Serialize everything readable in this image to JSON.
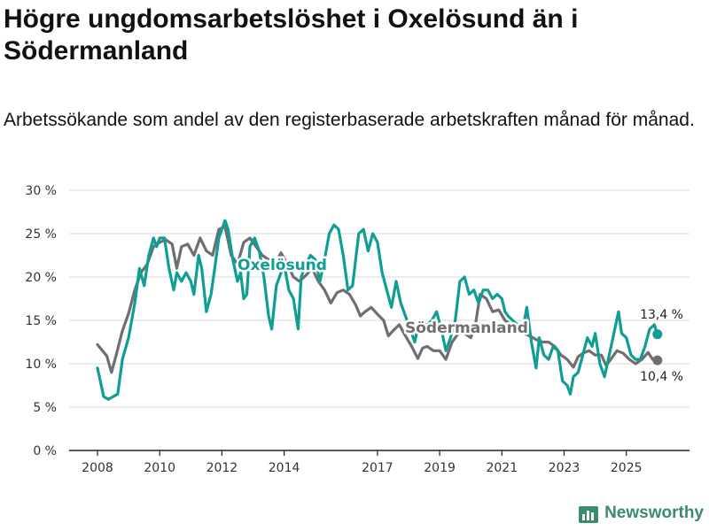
{
  "title": "Högre ungdomsarbetslöshet i Oxelösund än i Södermanland",
  "subtitle": "Arbetssökande som andel av den registerbaserade arbetskraften månad för månad.",
  "brand": "Newsworthy",
  "colors": {
    "oxelosund": "#0f9e94",
    "sodermanland": "#716e72",
    "grid": "#d8d8d8",
    "axis": "#222222"
  },
  "chart_data": {
    "type": "line",
    "title": "Högre ungdomsarbetslöshet i Oxelösund än i Södermanland",
    "xlabel": "",
    "ylabel": "",
    "xlim": [
      2008.0,
      2026.6
    ],
    "ylim": [
      0,
      30
    ],
    "y_ticks": [
      0,
      5,
      10,
      15,
      20,
      25,
      30
    ],
    "y_tick_labels": [
      "0 %",
      "5 %",
      "10 %",
      "15 %",
      "20 %",
      "25 %",
      "30 %"
    ],
    "x_ticks": [
      2008,
      2010,
      2012,
      2014,
      2017,
      2019,
      2021,
      2023,
      2025
    ],
    "x_tick_labels": [
      "2008",
      "2010",
      "2012",
      "2014",
      "2017",
      "2019",
      "2021",
      "2023",
      "2025"
    ],
    "grid": true,
    "series": [
      {
        "name": "Södermanland",
        "end_label": "10,4 %",
        "points": [
          [
            2008.0,
            12.2
          ],
          [
            2008.3,
            10.9
          ],
          [
            2008.45,
            9.0
          ],
          [
            2008.6,
            11.0
          ],
          [
            2008.8,
            13.8
          ],
          [
            2009.0,
            15.8
          ],
          [
            2009.2,
            18.5
          ],
          [
            2009.4,
            20.5
          ],
          [
            2009.6,
            21.5
          ],
          [
            2009.8,
            23.5
          ],
          [
            2010.0,
            24.0
          ],
          [
            2010.2,
            24.3
          ],
          [
            2010.4,
            23.8
          ],
          [
            2010.55,
            21.0
          ],
          [
            2010.7,
            23.5
          ],
          [
            2010.9,
            23.8
          ],
          [
            2011.1,
            22.5
          ],
          [
            2011.3,
            24.5
          ],
          [
            2011.5,
            23.0
          ],
          [
            2011.7,
            22.5
          ],
          [
            2011.9,
            25.5
          ],
          [
            2012.1,
            25.8
          ],
          [
            2012.3,
            22.5
          ],
          [
            2012.5,
            21.5
          ],
          [
            2012.7,
            24.0
          ],
          [
            2012.9,
            24.5
          ],
          [
            2013.1,
            23.5
          ],
          [
            2013.3,
            22.5
          ],
          [
            2013.5,
            22.0
          ],
          [
            2013.7,
            21.5
          ],
          [
            2013.9,
            22.8
          ],
          [
            2014.1,
            21.5
          ],
          [
            2014.3,
            20.0
          ],
          [
            2014.5,
            19.5
          ],
          [
            2014.7,
            20.2
          ],
          [
            2014.9,
            21.0
          ],
          [
            2015.1,
            19.5
          ],
          [
            2015.3,
            18.5
          ],
          [
            2015.5,
            17.0
          ],
          [
            2015.7,
            18.2
          ],
          [
            2015.9,
            18.5
          ],
          [
            2016.1,
            18.0
          ],
          [
            2016.3,
            16.8
          ],
          [
            2016.45,
            15.5
          ],
          [
            2016.6,
            16.0
          ],
          [
            2016.8,
            16.5
          ],
          [
            2017.0,
            15.7
          ],
          [
            2017.2,
            15.0
          ],
          [
            2017.35,
            13.2
          ],
          [
            2017.5,
            13.8
          ],
          [
            2017.7,
            14.5
          ],
          [
            2017.9,
            13.2
          ],
          [
            2018.1,
            12.0
          ],
          [
            2018.3,
            10.6
          ],
          [
            2018.45,
            11.8
          ],
          [
            2018.6,
            12.0
          ],
          [
            2018.8,
            11.5
          ],
          [
            2019.0,
            11.5
          ],
          [
            2019.2,
            10.5
          ],
          [
            2019.4,
            12.5
          ],
          [
            2019.6,
            13.5
          ],
          [
            2019.8,
            13.5
          ],
          [
            2020.0,
            13.0
          ],
          [
            2020.15,
            14.5
          ],
          [
            2020.3,
            18.0
          ],
          [
            2020.5,
            17.5
          ],
          [
            2020.7,
            16.0
          ],
          [
            2020.9,
            16.2
          ],
          [
            2021.1,
            15.0
          ],
          [
            2021.3,
            14.5
          ],
          [
            2021.5,
            14.0
          ],
          [
            2021.7,
            13.5
          ],
          [
            2021.9,
            13.2
          ],
          [
            2022.1,
            12.8
          ],
          [
            2022.3,
            12.5
          ],
          [
            2022.5,
            12.5
          ],
          [
            2022.7,
            12.0
          ],
          [
            2022.9,
            11.0
          ],
          [
            2023.1,
            10.5
          ],
          [
            2023.3,
            9.6
          ],
          [
            2023.45,
            10.8
          ],
          [
            2023.6,
            11.2
          ],
          [
            2023.8,
            11.5
          ],
          [
            2024.0,
            11.0
          ],
          [
            2024.2,
            11.0
          ],
          [
            2024.35,
            9.8
          ],
          [
            2024.5,
            10.5
          ],
          [
            2024.7,
            11.5
          ],
          [
            2024.9,
            11.2
          ],
          [
            2025.1,
            10.5
          ],
          [
            2025.3,
            10.0
          ],
          [
            2025.5,
            10.5
          ],
          [
            2025.7,
            11.3
          ],
          [
            2025.85,
            10.5
          ],
          [
            2026.0,
            10.4
          ]
        ]
      },
      {
        "name": "Oxelösund",
        "end_label": "13,4 %",
        "points": [
          [
            2008.0,
            9.5
          ],
          [
            2008.2,
            6.2
          ],
          [
            2008.35,
            5.9
          ],
          [
            2008.5,
            6.2
          ],
          [
            2008.65,
            6.5
          ],
          [
            2008.8,
            10.5
          ],
          [
            2009.0,
            13.0
          ],
          [
            2009.2,
            17.0
          ],
          [
            2009.35,
            21.0
          ],
          [
            2009.5,
            19.0
          ],
          [
            2009.65,
            22.5
          ],
          [
            2009.8,
            24.5
          ],
          [
            2009.9,
            23.5
          ],
          [
            2010.0,
            24.5
          ],
          [
            2010.15,
            24.5
          ],
          [
            2010.3,
            21.0
          ],
          [
            2010.45,
            18.5
          ],
          [
            2010.55,
            20.5
          ],
          [
            2010.7,
            19.5
          ],
          [
            2010.85,
            20.5
          ],
          [
            2011.0,
            19.5
          ],
          [
            2011.1,
            18.0
          ],
          [
            2011.25,
            22.5
          ],
          [
            2011.35,
            21.0
          ],
          [
            2011.5,
            16.0
          ],
          [
            2011.65,
            18.0
          ],
          [
            2011.75,
            20.5
          ],
          [
            2011.9,
            24.5
          ],
          [
            2012.0,
            25.5
          ],
          [
            2012.1,
            26.5
          ],
          [
            2012.2,
            25.5
          ],
          [
            2012.35,
            22.0
          ],
          [
            2012.5,
            19.5
          ],
          [
            2012.6,
            20.5
          ],
          [
            2012.7,
            17.5
          ],
          [
            2012.8,
            18.0
          ],
          [
            2012.9,
            23.5
          ],
          [
            2013.05,
            24.5
          ],
          [
            2013.2,
            23.0
          ],
          [
            2013.35,
            20.0
          ],
          [
            2013.5,
            15.5
          ],
          [
            2013.6,
            14.0
          ],
          [
            2013.75,
            19.0
          ],
          [
            2013.9,
            20.5
          ],
          [
            2014.0,
            21.5
          ],
          [
            2014.15,
            18.5
          ],
          [
            2014.3,
            17.5
          ],
          [
            2014.45,
            14.0
          ],
          [
            2014.55,
            20.0
          ],
          [
            2014.7,
            21.5
          ],
          [
            2014.85,
            22.5
          ],
          [
            2015.0,
            22.0
          ],
          [
            2015.15,
            19.5
          ],
          [
            2015.3,
            22.0
          ],
          [
            2015.45,
            25.0
          ],
          [
            2015.6,
            26.0
          ],
          [
            2015.75,
            25.5
          ],
          [
            2015.9,
            22.5
          ],
          [
            2016.05,
            18.5
          ],
          [
            2016.2,
            19.0
          ],
          [
            2016.4,
            25.0
          ],
          [
            2016.55,
            25.5
          ],
          [
            2016.7,
            23.0
          ],
          [
            2016.85,
            25.0
          ],
          [
            2017.0,
            24.0
          ],
          [
            2017.15,
            20.5
          ],
          [
            2017.3,
            18.5
          ],
          [
            2017.45,
            16.5
          ],
          [
            2017.6,
            19.5
          ],
          [
            2017.75,
            17.0
          ],
          [
            2017.9,
            15.5
          ],
          [
            2018.05,
            14.0
          ],
          [
            2018.2,
            12.5
          ],
          [
            2018.35,
            15.0
          ],
          [
            2018.5,
            14.5
          ],
          [
            2018.6,
            14.5
          ],
          [
            2018.75,
            15.0
          ],
          [
            2018.9,
            16.0
          ],
          [
            2019.05,
            14.0
          ],
          [
            2019.2,
            11.5
          ],
          [
            2019.35,
            13.0
          ],
          [
            2019.5,
            15.0
          ],
          [
            2019.65,
            19.5
          ],
          [
            2019.8,
            20.0
          ],
          [
            2019.95,
            18.0
          ],
          [
            2020.1,
            18.5
          ],
          [
            2020.25,
            17.0
          ],
          [
            2020.4,
            18.5
          ],
          [
            2020.55,
            18.5
          ],
          [
            2020.7,
            17.5
          ],
          [
            2020.85,
            18.0
          ],
          [
            2021.0,
            17.5
          ],
          [
            2021.1,
            16.0
          ],
          [
            2021.2,
            15.5
          ],
          [
            2021.35,
            15.0
          ],
          [
            2021.5,
            14.5
          ],
          [
            2021.65,
            13.5
          ],
          [
            2021.8,
            16.5
          ],
          [
            2021.95,
            12.5
          ],
          [
            2022.1,
            9.5
          ],
          [
            2022.2,
            13.0
          ],
          [
            2022.35,
            11.0
          ],
          [
            2022.5,
            10.5
          ],
          [
            2022.65,
            12.0
          ],
          [
            2022.8,
            11.5
          ],
          [
            2022.95,
            8.0
          ],
          [
            2023.1,
            7.5
          ],
          [
            2023.2,
            6.5
          ],
          [
            2023.3,
            8.5
          ],
          [
            2023.45,
            9.0
          ],
          [
            2023.6,
            11.0
          ],
          [
            2023.75,
            13.0
          ],
          [
            2023.9,
            12.0
          ],
          [
            2024.0,
            13.5
          ],
          [
            2024.15,
            10.0
          ],
          [
            2024.3,
            8.5
          ],
          [
            2024.45,
            11.0
          ],
          [
            2024.6,
            13.5
          ],
          [
            2024.75,
            16.0
          ],
          [
            2024.85,
            13.5
          ],
          [
            2025.0,
            13.0
          ],
          [
            2025.15,
            11.0
          ],
          [
            2025.3,
            10.5
          ],
          [
            2025.45,
            10.5
          ],
          [
            2025.6,
            12.0
          ],
          [
            2025.75,
            14.0
          ],
          [
            2025.9,
            14.5
          ],
          [
            2026.0,
            13.4
          ]
        ]
      }
    ]
  }
}
